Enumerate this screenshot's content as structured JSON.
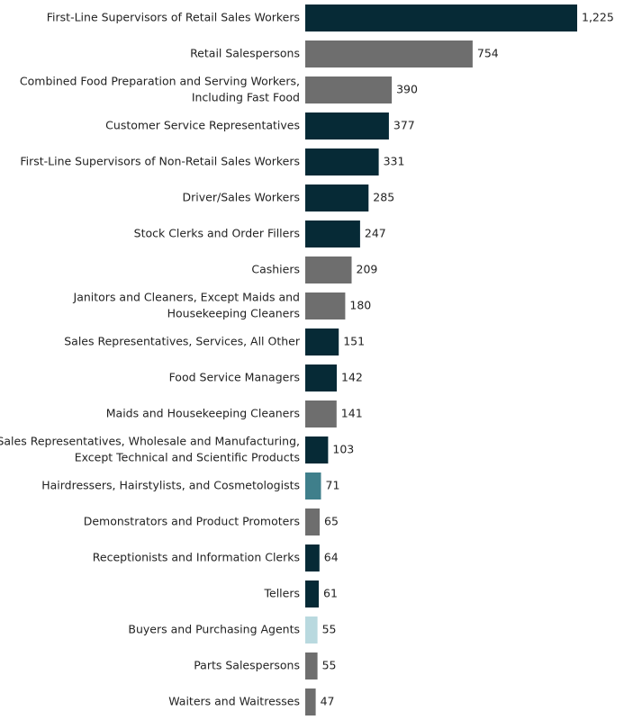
{
  "chart_data": {
    "type": "bar",
    "orientation": "horizontal",
    "grid": false,
    "legend": "none",
    "xlim": [
      0,
      1225
    ],
    "colors": {
      "dark": "#062a36",
      "gray": "#6e6e6e",
      "teal": "#3f7f8b",
      "light": "#b9d9df"
    },
    "categories": [
      [
        "First-Line Supervisors of Retail Sales Workers"
      ],
      [
        "Retail Salespersons"
      ],
      [
        "Combined Food Preparation and Serving Workers,",
        "Including Fast Food"
      ],
      [
        "Customer Service Representatives"
      ],
      [
        "First-Line Supervisors of Non-Retail Sales Workers"
      ],
      [
        "Driver/Sales Workers"
      ],
      [
        "Stock Clerks and Order Fillers"
      ],
      [
        "Cashiers"
      ],
      [
        "Janitors and Cleaners, Except Maids and",
        "Housekeeping Cleaners"
      ],
      [
        "Sales Representatives, Services, All Other"
      ],
      [
        "Food Service Managers"
      ],
      [
        "Maids and Housekeeping Cleaners"
      ],
      [
        "Sales Representatives, Wholesale and Manufacturing,",
        "Except Technical and Scientific Products"
      ],
      [
        "Hairdressers, Hairstylists, and Cosmetologists"
      ],
      [
        "Demonstrators and Product Promoters"
      ],
      [
        "Receptionists and Information Clerks"
      ],
      [
        "Tellers"
      ],
      [
        "Buyers and Purchasing Agents"
      ],
      [
        "Parts Salespersons"
      ],
      [
        "Waiters and Waitresses"
      ]
    ],
    "values": [
      1225,
      754,
      390,
      377,
      331,
      285,
      247,
      209,
      180,
      151,
      142,
      141,
      103,
      71,
      65,
      64,
      61,
      55,
      55,
      47
    ],
    "value_labels": [
      "1,225",
      "754",
      "390",
      "377",
      "331",
      "285",
      "247",
      "209",
      "180",
      "151",
      "142",
      "141",
      "103",
      "71",
      "65",
      "64",
      "61",
      "55",
      "55",
      "47"
    ],
    "bar_colors": [
      "dark",
      "gray",
      "gray",
      "dark",
      "dark",
      "dark",
      "dark",
      "gray",
      "gray",
      "dark",
      "dark",
      "gray",
      "dark",
      "teal",
      "gray",
      "dark",
      "dark",
      "light",
      "gray",
      "gray"
    ]
  }
}
